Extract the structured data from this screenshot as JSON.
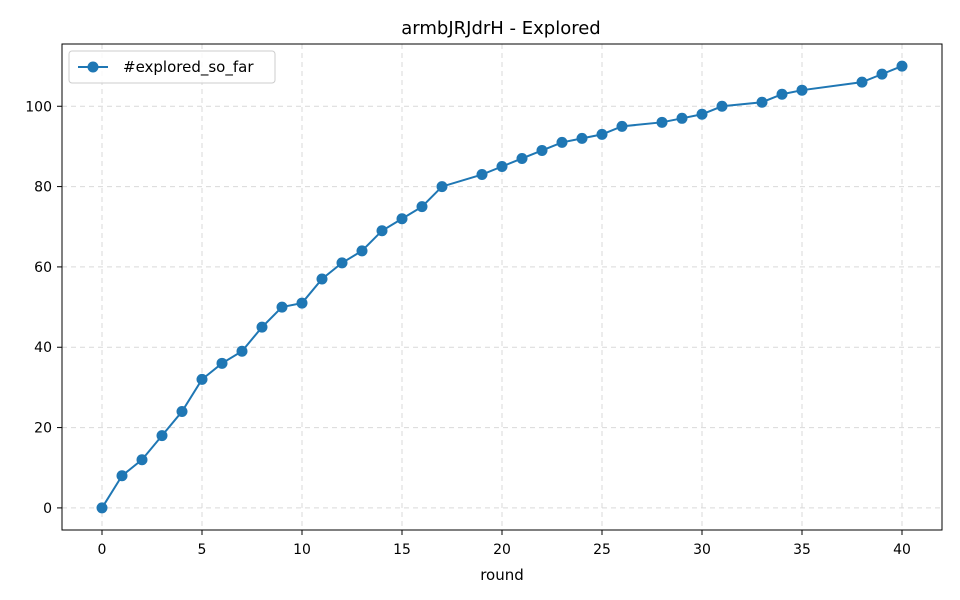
{
  "chart_data": {
    "type": "line",
    "title": "armbJRJdrH - Explored",
    "xlabel": "round",
    "ylabel": "",
    "xlim": [
      -2,
      42
    ],
    "ylim": [
      -5.5,
      115.5
    ],
    "xticks": [
      0,
      5,
      10,
      15,
      20,
      25,
      30,
      35,
      40
    ],
    "yticks": [
      0,
      20,
      40,
      60,
      80,
      100
    ],
    "grid": true,
    "legend_position": "top-left",
    "series": [
      {
        "name": "#explored_so_far",
        "color": "#1f77b4",
        "marker": "circle",
        "x": [
          0,
          1,
          2,
          3,
          4,
          5,
          6,
          7,
          8,
          9,
          10,
          11,
          12,
          13,
          14,
          15,
          16,
          17,
          19,
          20,
          21,
          22,
          23,
          24,
          25,
          26,
          28,
          29,
          30,
          31,
          33,
          34,
          35,
          38,
          39,
          40
        ],
        "y": [
          0,
          8,
          12,
          18,
          24,
          32,
          36,
          39,
          45,
          50,
          51,
          57,
          61,
          64,
          69,
          72,
          75,
          80,
          83,
          85,
          87,
          89,
          91,
          92,
          93,
          95,
          96,
          97,
          98,
          100,
          101,
          103,
          104,
          106,
          108,
          110
        ]
      }
    ]
  }
}
